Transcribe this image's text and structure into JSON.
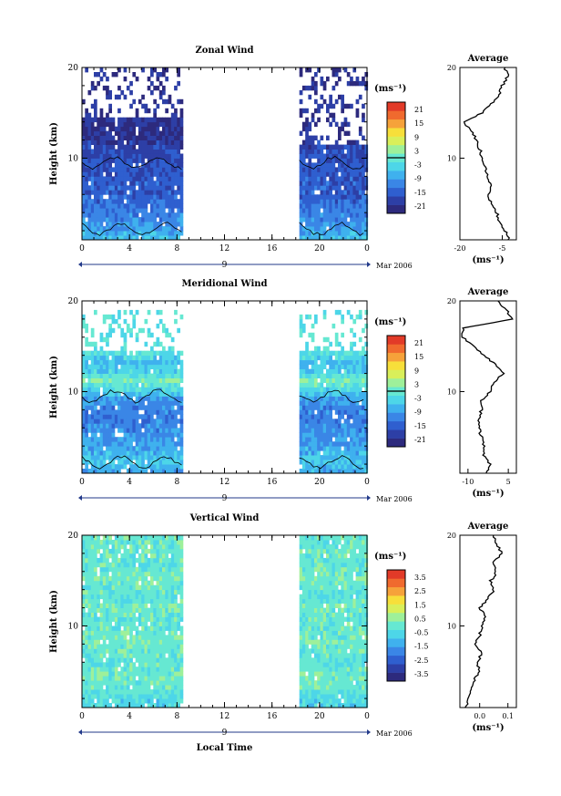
{
  "figure": {
    "x_label": "Local Time",
    "date_label": "Mar 2006",
    "day_label": "9"
  },
  "colors": {
    "scale": [
      "#2d2a7d",
      "#2d3fa6",
      "#2f5fcf",
      "#3a86e6",
      "#3fb1ee",
      "#4dd6e8",
      "#66e8d2",
      "#9ef09a",
      "#d9ef5a",
      "#f7df3a",
      "#f6a23a",
      "#f06a2e",
      "#e23a28"
    ],
    "contour": "#000000",
    "avg_line": "#000000"
  },
  "chart_data": [
    {
      "type": "heatmap",
      "title": "Zonal Wind",
      "ylabel": "Height (km)",
      "xlabel": "Local Time",
      "x_ticks": [
        "0",
        "4",
        "8",
        "12",
        "16",
        "20",
        "0"
      ],
      "x_range": [
        0,
        24
      ],
      "y_ticks": [
        "10",
        "20"
      ],
      "y_range": [
        1,
        20
      ],
      "data_segments": [
        [
          0,
          8.5
        ],
        [
          18.3,
          24
        ]
      ],
      "data_top_km": [
        [
          0,
          8.5,
          14.5
        ],
        [
          18.3,
          24,
          11.5
        ]
      ],
      "sparse_top_km": 20,
      "colorbar": {
        "unit": "(ms⁻¹)",
        "labels": [
          "21",
          "15",
          "9",
          "3",
          "-3",
          "-9",
          "-15",
          "-21"
        ],
        "range": [
          -24,
          24
        ],
        "zero_line": true
      },
      "field_profile": {
        "heights": [
          1,
          2,
          3,
          4,
          5,
          6,
          7,
          8,
          9,
          10,
          11,
          12,
          13,
          14
        ],
        "values": [
          -6,
          -9,
          -11,
          -12,
          -14,
          -15,
          -15,
          -16,
          -16,
          -17,
          -18,
          -20,
          -21,
          -20
        ]
      },
      "average": {
        "title": "Average",
        "xlabel": "(ms⁻¹)",
        "x_ticks": [
          "-20",
          "-5"
        ],
        "x_tick_values": [
          -20,
          -5
        ],
        "x_range": [
          -20,
          0
        ],
        "heights": [
          1,
          2,
          3,
          4,
          5,
          6,
          7,
          8,
          9,
          10,
          11,
          12,
          13,
          14,
          15,
          16,
          17,
          18,
          19,
          20
        ],
        "values": [
          -2.5,
          -4,
          -6,
          -7,
          -9,
          -10,
          -9,
          -10,
          -11,
          -12,
          -13,
          -14,
          -16,
          -19,
          -12,
          -9,
          -6,
          -5,
          -3,
          -4
        ]
      }
    },
    {
      "type": "heatmap",
      "title": "Meridional Wind",
      "ylabel": "Height (km)",
      "xlabel": "Local Time",
      "x_ticks": [
        "0",
        "4",
        "8",
        "12",
        "16",
        "20",
        "0"
      ],
      "x_range": [
        0,
        24
      ],
      "y_ticks": [
        "10",
        "20"
      ],
      "y_range": [
        1,
        20
      ],
      "data_segments": [
        [
          0,
          8.5
        ],
        [
          18.3,
          24
        ]
      ],
      "data_top_km": [
        [
          0,
          8.5,
          14.5
        ],
        [
          18.3,
          24,
          14.5
        ]
      ],
      "sparse_top_km": 19,
      "colorbar": {
        "unit": "(ms⁻¹)",
        "labels": [
          "21",
          "15",
          "9",
          "3",
          "-3",
          "-9",
          "-15",
          "-21"
        ],
        "range": [
          -24,
          24
        ],
        "zero_line": true
      },
      "field_profile": {
        "heights": [
          1,
          2,
          3,
          4,
          5,
          6,
          7,
          8,
          9,
          10,
          11,
          12,
          13,
          14
        ],
        "values": [
          -8,
          -5,
          -7,
          -9,
          -10,
          -11,
          -12,
          -11,
          -9,
          -3,
          2,
          -4,
          -6,
          -2
        ]
      },
      "average": {
        "title": "Average",
        "xlabel": "(ms⁻¹)",
        "x_ticks": [
          "-10",
          "5"
        ],
        "x_tick_values": [
          -10,
          5
        ],
        "x_range": [
          -13,
          8
        ],
        "heights": [
          1,
          2,
          3,
          4,
          5,
          6,
          7,
          8,
          9,
          10,
          11,
          12,
          13,
          14,
          15,
          16,
          17,
          18,
          19,
          20
        ],
        "values": [
          -3,
          -2,
          -4,
          -4,
          -5,
          -6,
          -6,
          -5,
          -5,
          -2,
          0,
          3,
          0,
          -4,
          -8,
          -12,
          -12,
          7,
          4,
          1
        ]
      }
    },
    {
      "type": "heatmap",
      "title": "Vertical Wind",
      "ylabel": "Height (km)",
      "xlabel": "Local Time",
      "x_ticks": [
        "0",
        "4",
        "8",
        "12",
        "16",
        "20",
        "0"
      ],
      "x_range": [
        0,
        24
      ],
      "y_ticks": [
        "10",
        "20"
      ],
      "y_range": [
        1,
        20
      ],
      "data_segments": [
        [
          0,
          8.5
        ],
        [
          18.3,
          24
        ]
      ],
      "data_top_km": [
        [
          0,
          8.5,
          20
        ],
        [
          18.3,
          24,
          20
        ]
      ],
      "sparse_top_km": 20,
      "colorbar": {
        "unit": "(ms⁻¹)",
        "labels": [
          "3.5",
          "2.5",
          "1.5",
          "0.5",
          "-0.5",
          "-1.5",
          "-2.5",
          "-3.5"
        ],
        "range": [
          -4,
          4
        ],
        "zero_line": false
      },
      "field_profile": {
        "heights": [
          1,
          2,
          3,
          4,
          5,
          6,
          7,
          8,
          9,
          10,
          11,
          12,
          13,
          14,
          15,
          16,
          17,
          18,
          19,
          20
        ],
        "values": [
          -0.6,
          -0.4,
          0,
          0.1,
          0,
          -0.2,
          0,
          0.2,
          0,
          -0.1,
          0,
          0.1,
          -0.2,
          0,
          0.2,
          0,
          -0.1,
          0.1,
          0,
          0.1
        ]
      },
      "average": {
        "title": "Average",
        "xlabel": "(ms⁻¹)",
        "x_ticks": [
          "0.0",
          "0.1"
        ],
        "x_tick_values": [
          0.0,
          0.1
        ],
        "x_range": [
          -0.07,
          0.13
        ],
        "heights": [
          1,
          2,
          3,
          4,
          5,
          6,
          7,
          8,
          9,
          10,
          11,
          12,
          13,
          14,
          15,
          16,
          17,
          18,
          19,
          20
        ],
        "values": [
          -0.05,
          -0.04,
          -0.03,
          -0.02,
          0.0,
          -0.01,
          0.01,
          -0.02,
          0.0,
          0.01,
          0.02,
          0.0,
          0.03,
          0.05,
          0.04,
          0.06,
          0.05,
          0.08,
          0.06,
          0.05
        ]
      }
    }
  ]
}
